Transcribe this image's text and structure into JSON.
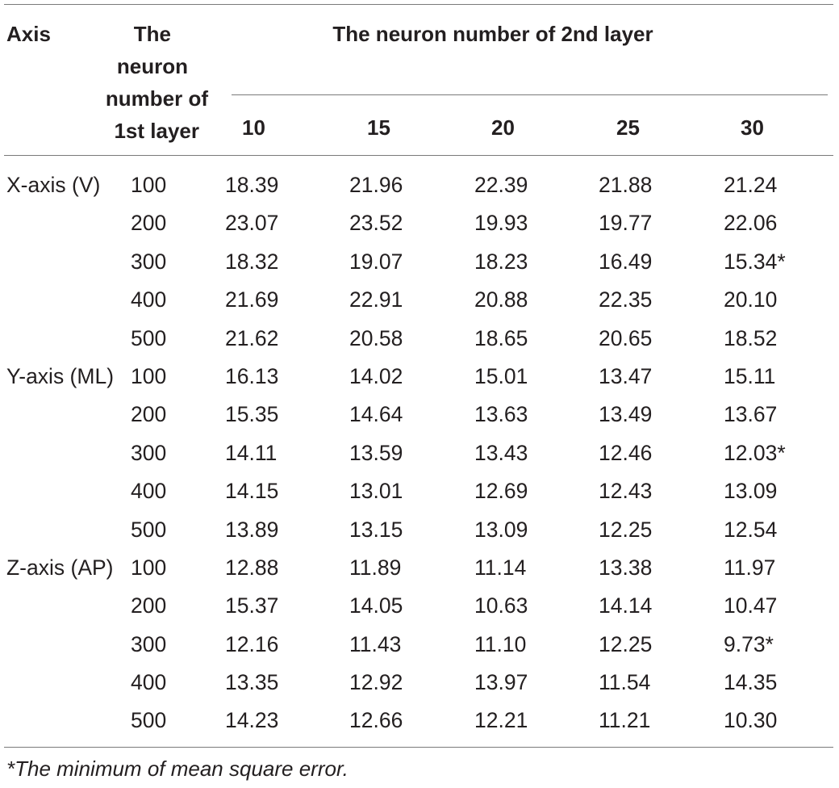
{
  "table": {
    "header": {
      "axis": "Axis",
      "first_layer": [
        "The",
        "neuron",
        "number of",
        "1st layer"
      ],
      "second_layer": "The neuron number of 2nd layer",
      "columns": [
        "10",
        "15",
        "20",
        "25",
        "30"
      ]
    },
    "rows": [
      {
        "axis": "X-axis (V)",
        "first": "100",
        "values": [
          "18.39",
          "21.96",
          "22.39",
          "21.88",
          "21.24"
        ]
      },
      {
        "axis": "",
        "first": "200",
        "values": [
          "23.07",
          "23.52",
          "19.93",
          "19.77",
          "22.06"
        ]
      },
      {
        "axis": "",
        "first": "300",
        "values": [
          "18.32",
          "19.07",
          "18.23",
          "16.49",
          "15.34*"
        ]
      },
      {
        "axis": "",
        "first": "400",
        "values": [
          "21.69",
          "22.91",
          "20.88",
          "22.35",
          "20.10"
        ]
      },
      {
        "axis": "",
        "first": "500",
        "values": [
          "21.62",
          "20.58",
          "18.65",
          "20.65",
          "18.52"
        ]
      },
      {
        "axis": "Y-axis (ML)",
        "first": "100",
        "values": [
          "16.13",
          "14.02",
          "15.01",
          "13.47",
          "15.11"
        ]
      },
      {
        "axis": "",
        "first": "200",
        "values": [
          "15.35",
          "14.64",
          "13.63",
          "13.49",
          "13.67"
        ]
      },
      {
        "axis": "",
        "first": "300",
        "values": [
          "14.11",
          "13.59",
          "13.43",
          "12.46",
          "12.03*"
        ]
      },
      {
        "axis": "",
        "first": "400",
        "values": [
          "14.15",
          "13.01",
          "12.69",
          "12.43",
          "13.09"
        ]
      },
      {
        "axis": "",
        "first": "500",
        "values": [
          "13.89",
          "13.15",
          "13.09",
          "12.25",
          "12.54"
        ]
      },
      {
        "axis": "Z-axis (AP)",
        "first": "100",
        "values": [
          "12.88",
          "11.89",
          "11.14",
          "13.38",
          "11.97"
        ]
      },
      {
        "axis": "",
        "first": "200",
        "values": [
          "15.37",
          "14.05",
          "10.63",
          "14.14",
          "10.47"
        ]
      },
      {
        "axis": "",
        "first": "300",
        "values": [
          "12.16",
          "11.43",
          "11.10",
          "12.25",
          "9.73*"
        ]
      },
      {
        "axis": "",
        "first": "400",
        "values": [
          "13.35",
          "12.92",
          "13.97",
          "11.54",
          "14.35"
        ]
      },
      {
        "axis": "",
        "first": "500",
        "values": [
          "14.23",
          "12.66",
          "12.21",
          "11.21",
          "10.30"
        ]
      }
    ],
    "footnote": "*The minimum of mean square error."
  }
}
